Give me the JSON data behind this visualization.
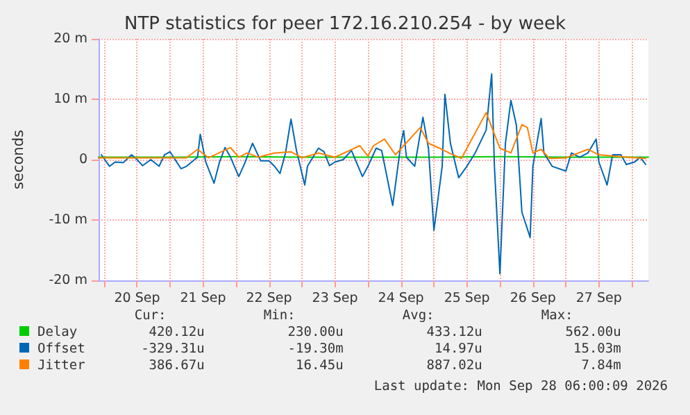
{
  "chart_data": {
    "type": "line",
    "title": "NTP statistics for peer 172.16.210.254 - by week",
    "ylabel": "seconds",
    "xlim": [
      "2026-09-19T22:00",
      "2026-09-28T06:00"
    ],
    "xticks": [
      {
        "value": "2026-09-20T00:00",
        "label": null
      },
      {
        "value": "2026-09-20T12:00",
        "label": "20 Sep"
      },
      {
        "value": "2026-09-21T00:00",
        "label": null
      },
      {
        "value": "2026-09-21T12:00",
        "label": "21 Sep"
      },
      {
        "value": "2026-09-22T00:00",
        "label": null
      },
      {
        "value": "2026-09-22T12:00",
        "label": "22 Sep"
      },
      {
        "value": "2026-09-23T00:00",
        "label": null
      },
      {
        "value": "2026-09-23T12:00",
        "label": "23 Sep"
      },
      {
        "value": "2026-09-24T00:00",
        "label": null
      },
      {
        "value": "2026-09-24T12:00",
        "label": "24 Sep"
      },
      {
        "value": "2026-09-25T00:00",
        "label": null
      },
      {
        "value": "2026-09-25T12:00",
        "label": "25 Sep"
      },
      {
        "value": "2026-09-26T00:00",
        "label": null
      },
      {
        "value": "2026-09-26T12:00",
        "label": "26 Sep"
      },
      {
        "value": "2026-09-27T00:00",
        "label": null
      },
      {
        "value": "2026-09-27T12:00",
        "label": "27 Sep"
      },
      {
        "value": "2026-09-28T00:00",
        "label": null
      }
    ],
    "ylim": [
      -20,
      20
    ],
    "yticks": [
      {
        "value": -20,
        "label": "-20 m"
      },
      {
        "value": -10,
        "label": "-10 m"
      },
      0,
      {
        "value": 10,
        "label": "10 m"
      },
      {
        "value": 20,
        "label": "20 m"
      }
    ],
    "grid": true,
    "legend": "bottom",
    "marker": "none",
    "line_style": "solid",
    "annotations": [
      "Cur:",
      "Min:",
      "Avg:",
      "Max:",
      "420.12u",
      "230.00u",
      "433.12u",
      "562.00u",
      "-329.31u",
      "-19.30m",
      "14.97u",
      "15.03m",
      "386.67u",
      "16.45u",
      "887.02u",
      "7.84m",
      "Last update: Mon Sep 28 06:00:09 2026"
    ],
    "series": [
      {
        "name": "Delay",
        "color": "#00cc00",
        "x": [
          "2026-09-19T22:00",
          "2026-09-21T00:00",
          "2026-09-22T00:00",
          "2026-09-23T00:00",
          "2026-09-24T00:00",
          "2026-09-25T00:00",
          "2026-09-26T00:00",
          "2026-09-27T00:00",
          "2026-09-28T06:00"
        ],
        "values": [
          0.4,
          0.4,
          0.5,
          0.4,
          0.4,
          0.4,
          0.5,
          0.4,
          0.4
        ]
      },
      {
        "name": "Offset",
        "color": "#0066b3",
        "x": [
          "2026-09-19T23:00",
          "2026-09-20T02:00",
          "2026-09-20T04:00",
          "2026-09-20T07:00",
          "2026-09-20T10:00",
          "2026-09-20T12:00",
          "2026-09-20T14:00",
          "2026-09-20T17:00",
          "2026-09-20T20:00",
          "2026-09-20T22:00",
          "2026-09-21T00:00",
          "2026-09-21T04:00",
          "2026-09-21T06:00",
          "2026-09-21T10:00",
          "2026-09-21T11:00",
          "2026-09-21T13:00",
          "2026-09-21T16:00",
          "2026-09-21T18:00",
          "2026-09-21T20:00",
          "2026-09-21T22:00",
          "2026-09-22T01:00",
          "2026-09-22T03:00",
          "2026-09-22T06:00",
          "2026-09-22T09:00",
          "2026-09-22T12:00",
          "2026-09-22T14:00",
          "2026-09-22T16:00",
          "2026-09-22T18:00",
          "2026-09-22T20:00",
          "2026-09-22T22:00",
          "2026-09-23T01:00",
          "2026-09-23T02:00",
          "2026-09-23T06:00",
          "2026-09-23T08:00",
          "2026-09-23T10:00",
          "2026-09-23T12:00",
          "2026-09-23T15:00",
          "2026-09-23T18:00",
          "2026-09-23T22:00",
          "2026-09-24T00:00",
          "2026-09-24T03:00",
          "2026-09-24T05:00",
          "2026-09-24T09:00",
          "2026-09-24T12:00",
          "2026-09-24T13:00",
          "2026-09-24T14:00",
          "2026-09-24T17:00",
          "2026-09-24T20:00",
          "2026-09-24T22:00",
          "2026-09-25T00:00",
          "2026-09-25T03:00",
          "2026-09-25T04:00",
          "2026-09-25T06:00",
          "2026-09-25T09:00",
          "2026-09-25T12:00",
          "2026-09-25T15:00",
          "2026-09-25T19:00",
          "2026-09-25T21:00",
          "2026-09-25T22:00",
          "2026-09-26T00:00",
          "2026-09-26T02:00",
          "2026-09-26T04:00",
          "2026-09-26T06:00",
          "2026-09-26T08:00",
          "2026-09-26T11:00",
          "2026-09-26T12:00",
          "2026-09-26T15:00",
          "2026-09-26T16:00",
          "2026-09-26T19:00",
          "2026-09-27T00:00",
          "2026-09-27T02:00",
          "2026-09-27T05:00",
          "2026-09-27T08:00",
          "2026-09-27T11:00",
          "2026-09-27T12:00",
          "2026-09-27T15:00",
          "2026-09-27T17:00",
          "2026-09-27T20:00",
          "2026-09-27T22:00",
          "2026-09-28T01:00",
          "2026-09-28T03:00",
          "2026-09-28T05:00"
        ],
        "values": [
          0.8,
          -1.1,
          -0.4,
          -0.5,
          0.8,
          0.0,
          -1.0,
          0.0,
          -1.1,
          0.8,
          1.3,
          -1.5,
          -1.1,
          0.4,
          4.2,
          -0.4,
          -3.9,
          -0.4,
          2.0,
          0.4,
          -2.8,
          -0.8,
          2.7,
          -0.2,
          -0.2,
          -1.1,
          -2.3,
          1.1,
          6.7,
          1.5,
          -4.2,
          -1.1,
          1.9,
          1.3,
          -1.0,
          -0.4,
          0.0,
          1.5,
          -2.8,
          -1.1,
          1.9,
          1.5,
          -7.6,
          2.7,
          4.8,
          0.4,
          -1.1,
          7.0,
          1.9,
          -11.7,
          -1.1,
          10.8,
          2.7,
          -3.0,
          -1.1,
          1.1,
          4.9,
          14.2,
          -1.1,
          -18.9,
          2.7,
          9.8,
          5.7,
          -8.7,
          -12.9,
          -1.1,
          6.8,
          1.1,
          -1.1,
          -1.9,
          1.1,
          0.4,
          1.1,
          3.4,
          -0.4,
          -4.2,
          0.8,
          0.8,
          -0.8,
          -0.4,
          0.4,
          -0.8
        ]
      },
      {
        "name": "Jitter",
        "color": "#ff8000",
        "x": [
          "2026-09-19T22:00",
          "2026-09-21T06:00",
          "2026-09-21T10:00",
          "2026-09-21T14:00",
          "2026-09-21T22:00",
          "2026-09-22T01:00",
          "2026-09-22T04:00",
          "2026-09-22T08:00",
          "2026-09-22T14:00",
          "2026-09-22T20:00",
          "2026-09-23T00:00",
          "2026-09-23T06:00",
          "2026-09-23T12:00",
          "2026-09-23T21:00",
          "2026-09-24T00:00",
          "2026-09-24T02:00",
          "2026-09-24T06:00",
          "2026-09-24T10:00",
          "2026-09-24T19:00",
          "2026-09-24T22:00",
          "2026-09-25T02:00",
          "2026-09-25T06:00",
          "2026-09-25T10:00",
          "2026-09-25T19:00",
          "2026-09-25T22:00",
          "2026-09-26T00:00",
          "2026-09-26T04:00",
          "2026-09-26T08:00",
          "2026-09-26T10:00",
          "2026-09-26T12:00",
          "2026-09-26T15:00",
          "2026-09-26T18:00",
          "2026-09-27T00:00",
          "2026-09-27T08:00",
          "2026-09-27T12:00",
          "2026-09-27T22:00",
          "2026-09-28T05:00"
        ],
        "values": [
          0.3,
          0.3,
          1.7,
          0.3,
          2.0,
          0.4,
          1.1,
          0.4,
          1.1,
          1.3,
          0.3,
          1.1,
          0.4,
          2.3,
          0.6,
          2.3,
          3.4,
          0.8,
          5.3,
          2.7,
          1.9,
          1.0,
          0.2,
          7.8,
          4.2,
          1.9,
          1.1,
          5.8,
          5.3,
          1.1,
          1.7,
          0.2,
          0.3,
          1.7,
          0.8,
          0.4,
          0.2
        ]
      }
    ]
  }
}
